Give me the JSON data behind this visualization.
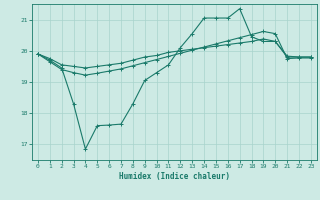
{
  "xlabel": "Humidex (Indice chaleur)",
  "background_color": "#cdeae4",
  "grid_color": "#a8d4cc",
  "line_color": "#1a7a6a",
  "xlim": [
    -0.5,
    23.5
  ],
  "ylim": [
    16.5,
    21.5
  ],
  "yticks": [
    17,
    18,
    19,
    20,
    21
  ],
  "xticks": [
    0,
    1,
    2,
    3,
    4,
    5,
    6,
    7,
    8,
    9,
    10,
    11,
    12,
    13,
    14,
    15,
    16,
    17,
    18,
    19,
    20,
    21,
    22,
    23
  ],
  "line1_x": [
    0,
    1,
    2,
    3,
    4,
    5,
    6,
    7,
    8,
    9,
    10,
    11,
    12,
    13,
    14,
    15,
    16,
    17,
    18,
    19,
    20,
    21,
    22,
    23
  ],
  "line1_y": [
    19.9,
    19.75,
    19.55,
    19.5,
    19.45,
    19.5,
    19.55,
    19.6,
    19.7,
    19.8,
    19.85,
    19.95,
    20.0,
    20.05,
    20.1,
    20.15,
    20.2,
    20.25,
    20.3,
    20.38,
    20.3,
    19.83,
    19.8,
    19.8
  ],
  "line2_x": [
    0,
    1,
    2,
    3,
    4,
    5,
    6,
    7,
    8,
    9,
    10,
    11,
    12,
    13,
    14,
    15,
    16,
    17,
    18,
    19,
    20,
    21,
    22,
    23
  ],
  "line2_y": [
    19.9,
    19.7,
    19.45,
    18.3,
    16.85,
    17.6,
    17.62,
    17.65,
    18.3,
    19.05,
    19.3,
    19.55,
    20.1,
    20.55,
    21.05,
    21.05,
    21.05,
    21.35,
    20.45,
    20.3,
    20.3,
    19.8,
    19.8,
    19.8
  ],
  "line3_x": [
    0,
    1,
    2,
    3,
    4,
    5,
    6,
    7,
    8,
    9,
    10,
    11,
    12,
    13,
    14,
    15,
    16,
    17,
    18,
    19,
    20,
    21,
    22,
    23
  ],
  "line3_y": [
    19.9,
    19.65,
    19.4,
    19.3,
    19.22,
    19.28,
    19.35,
    19.42,
    19.52,
    19.62,
    19.72,
    19.82,
    19.92,
    20.02,
    20.12,
    20.22,
    20.32,
    20.42,
    20.52,
    20.62,
    20.55,
    19.75,
    19.77,
    19.77
  ]
}
